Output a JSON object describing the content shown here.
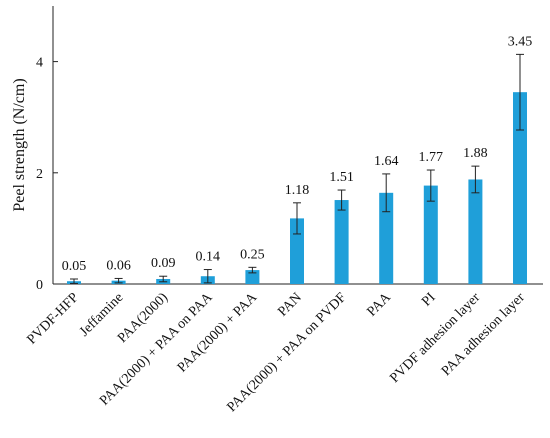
{
  "chart_data": {
    "type": "bar",
    "title": "",
    "xlabel": "",
    "ylabel": "Peel strength  (N/cm)",
    "ylim": [
      0,
      5
    ],
    "yticks": [
      0,
      2,
      4
    ],
    "grid": false,
    "categories": [
      "PVDF-HFP",
      "Jeffamine",
      "PAA(2000)",
      "PAA(2000) + PAA on PAA",
      "PAA(2000) + PAA",
      "PAN",
      "PAA(2000) + PAA on PVDF",
      "PAA",
      "PI",
      "PVDF adhesion layer",
      "PAA adhesion layer"
    ],
    "values": [
      0.05,
      0.06,
      0.09,
      0.14,
      0.25,
      1.18,
      1.51,
      1.64,
      1.77,
      1.88,
      3.45
    ],
    "value_labels": [
      "0.05",
      "0.06",
      "0.09",
      "0.14",
      "0.25",
      "1.18",
      "1.51",
      "1.64",
      "1.77",
      "1.88",
      "3.45"
    ],
    "error": [
      0.04,
      0.04,
      0.05,
      0.12,
      0.05,
      0.28,
      0.18,
      0.34,
      0.28,
      0.24,
      0.68
    ],
    "bar_color": "#1f9fd9",
    "error_color": "#222222",
    "axis_color": "#222222"
  }
}
